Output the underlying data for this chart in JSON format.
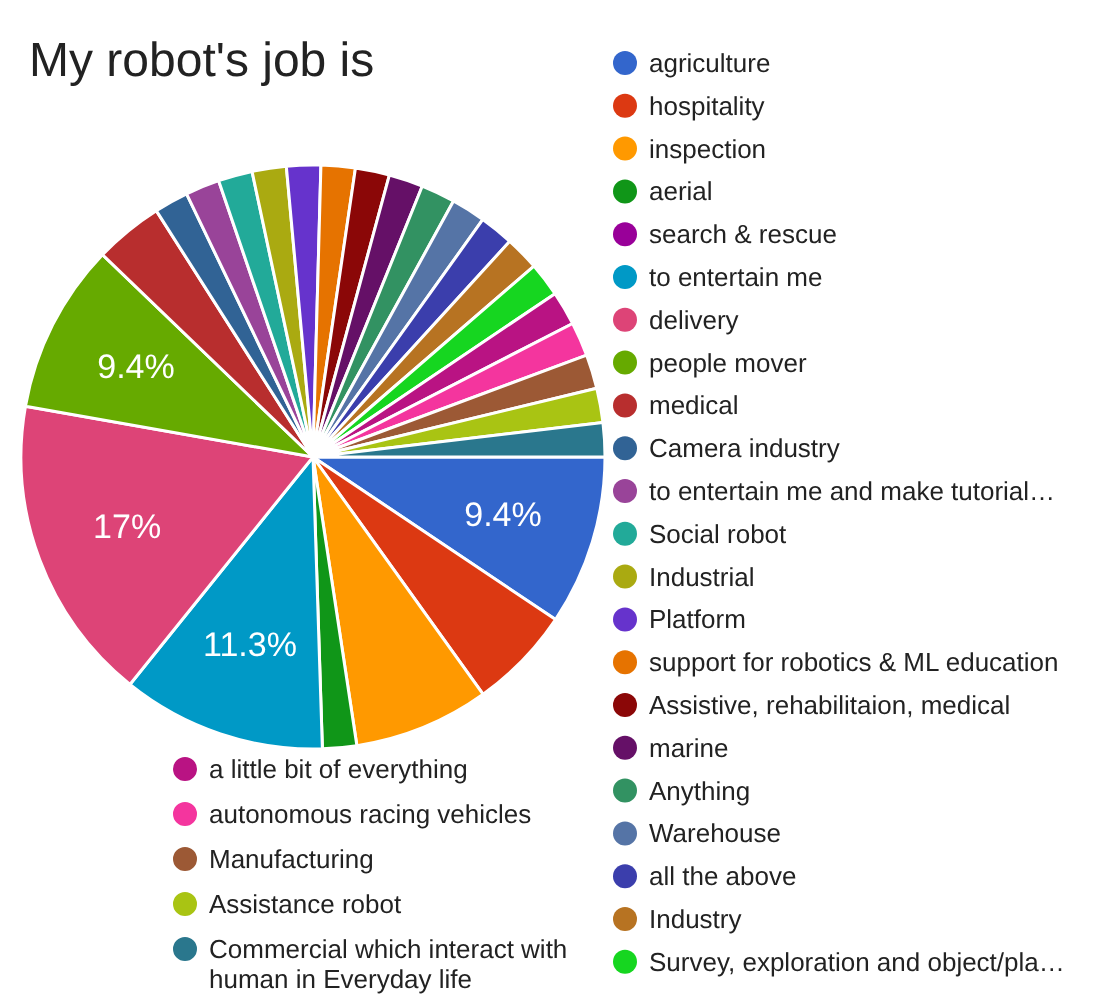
{
  "chart_data": {
    "type": "pie",
    "title": "My robot's job is",
    "legend": "right",
    "categories": [
      "agriculture",
      "hospitality",
      "inspection",
      "aerial",
      "search & rescue",
      "to entertain me",
      "delivery",
      "people mover",
      "medical",
      "Camera industry",
      "to entertain me and make tutorial…",
      "Social robot",
      "Industrial",
      "Platform",
      "support for robotics & ML education",
      "Assistive, rehabilitaion, medical",
      "marine",
      "Anything",
      "Warehouse",
      "all the above",
      "Industry",
      "Survey, exploration and object/pla…",
      "a little bit of everything",
      "autonomous racing vehicles",
      "Manufacturing",
      "Assistance robot",
      "Commercial which interact with human in Everyday life"
    ],
    "values": [
      9.4,
      5.7,
      7.5,
      1.89,
      0,
      11.3,
      17,
      9.4,
      3.8,
      1.89,
      1.89,
      1.89,
      1.89,
      1.89,
      1.89,
      1.89,
      1.89,
      1.89,
      1.89,
      1.89,
      1.89,
      1.89,
      1.89,
      1.89,
      1.89,
      1.89,
      1.89
    ],
    "value_labels": [
      "9.4%",
      null,
      null,
      null,
      null,
      "11.3%",
      "17%",
      "9.4%",
      null,
      null,
      null,
      null,
      null,
      null,
      null,
      null,
      null,
      null,
      null,
      null,
      null,
      null,
      null,
      null,
      null,
      null,
      null
    ],
    "colors": [
      "#3366cc",
      "#dc3912",
      "#ff9900",
      "#109618",
      "#990099",
      "#0099c6",
      "#dd4477",
      "#66aa00",
      "#b82e2e",
      "#316395",
      "#994499",
      "#22aa99",
      "#aaaa11",
      "#6633cc",
      "#e67300",
      "#8b0707",
      "#651067",
      "#329262",
      "#5574a6",
      "#3b3eac",
      "#b77322",
      "#16d620",
      "#b91383",
      "#f4359e",
      "#9c5935",
      "#a9c413",
      "#2a778d"
    ]
  }
}
